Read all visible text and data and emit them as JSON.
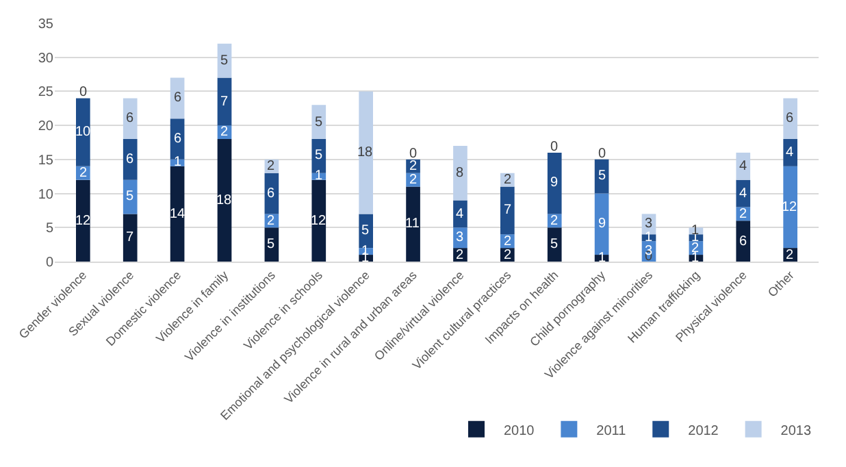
{
  "chart_data": {
    "type": "bar",
    "stacked": true,
    "data_labels": true,
    "grid": "y",
    "legend": "bottom",
    "categories": [
      "Gender violence",
      "Sexual violence",
      "Domestic violence",
      "Violence in family",
      "Violence in institutions",
      "Violence in schools",
      "Emotional and psychological violence",
      "Violence in rural and urban areas",
      "Online/virtual violence",
      "Violent cultural practices",
      "Impacts on health",
      "Child pornography",
      "Violence against minorities",
      "Human trafficking",
      "Physical violence",
      "Other"
    ],
    "ylim": [
      0,
      35
    ],
    "yticks": [
      0,
      5,
      10,
      15,
      20,
      25,
      30,
      35
    ],
    "series": [
      {
        "name": "2010",
        "color": "#0c1f3f",
        "values": [
          12,
          7,
          14,
          18,
          5,
          12,
          1,
          11,
          2,
          2,
          5,
          1,
          0,
          1,
          6,
          2
        ]
      },
      {
        "name": "2011",
        "color": "#4a86d0",
        "values": [
          2,
          5,
          1,
          2,
          2,
          1,
          1,
          2,
          3,
          2,
          2,
          9,
          3,
          2,
          2,
          12
        ]
      },
      {
        "name": "2012",
        "color": "#1f4e8c",
        "values": [
          10,
          6,
          6,
          7,
          6,
          5,
          5,
          2,
          4,
          7,
          9,
          5,
          1,
          1,
          4,
          4
        ]
      },
      {
        "name": "2013",
        "color": "#bdd0ea",
        "values": [
          0,
          6,
          6,
          5,
          2,
          5,
          18,
          0,
          8,
          2,
          0,
          0,
          3,
          1,
          4,
          6
        ]
      }
    ]
  }
}
